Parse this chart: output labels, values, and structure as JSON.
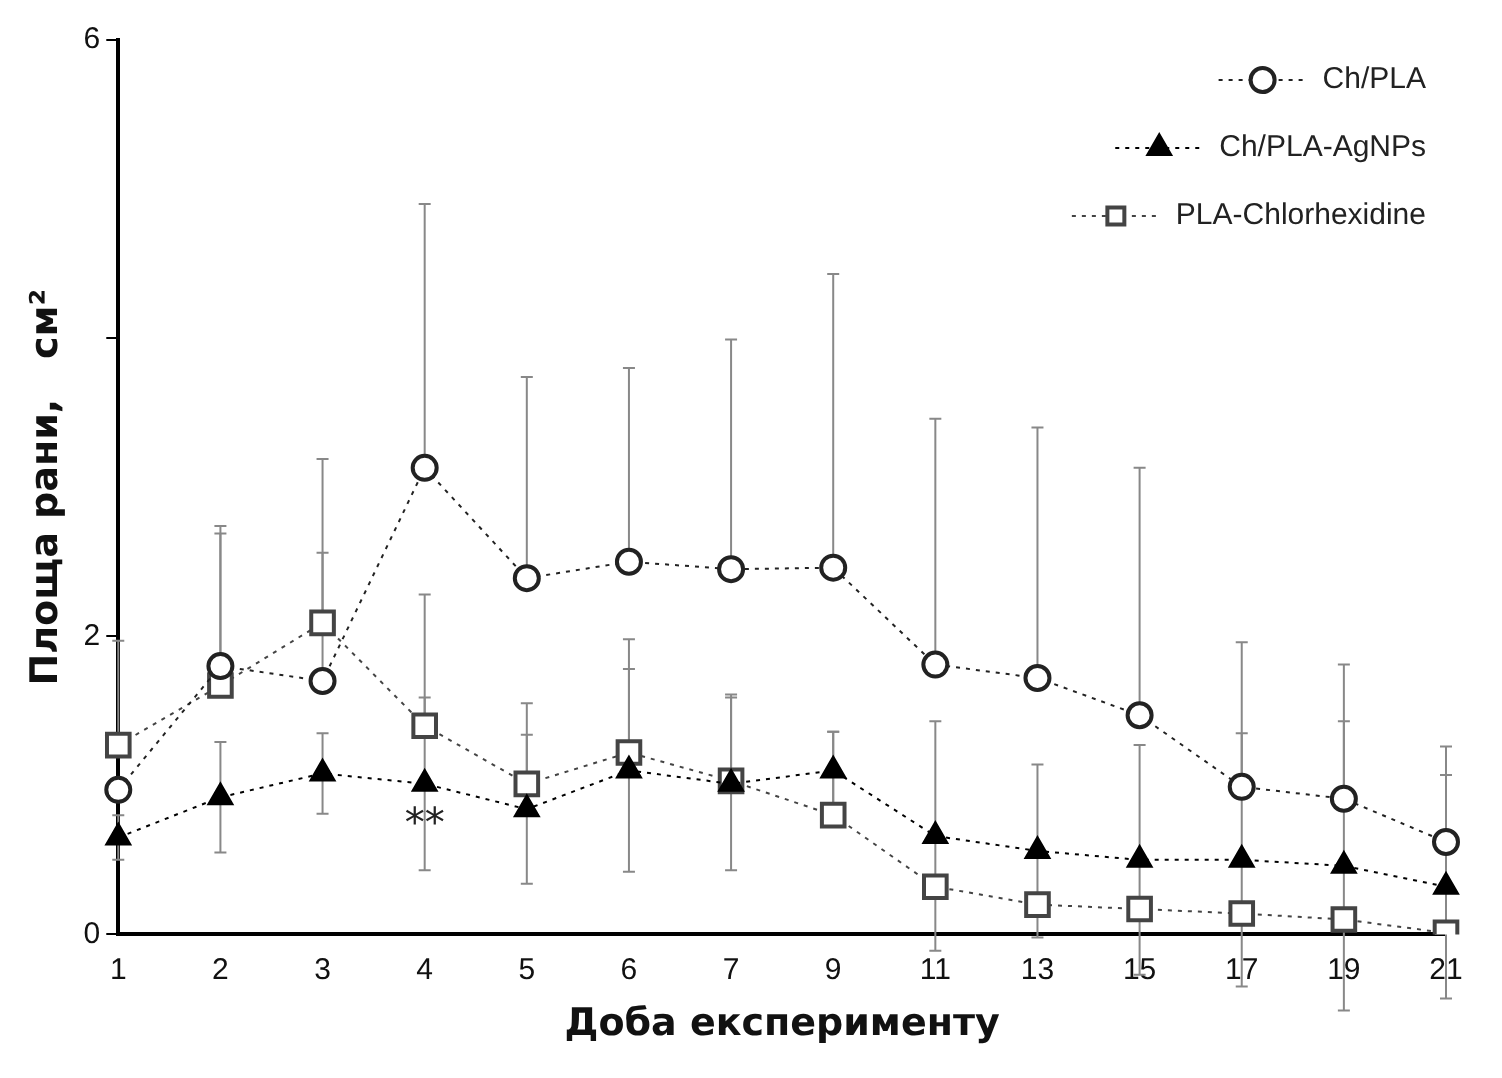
{
  "chart_data": {
    "type": "line",
    "xlabel": "Доба експерименту",
    "ylabel": "Площа рани,   см²",
    "categories": [
      "1",
      "2",
      "3",
      "4",
      "5",
      "6",
      "7",
      "9",
      "11",
      "13",
      "15",
      "17",
      "19",
      "21"
    ],
    "ylim": [
      0,
      6
    ],
    "yticks": [
      0,
      2,
      {
        "value": 4,
        "label": null
      },
      6
    ],
    "grid": false,
    "legend": "top right",
    "line_style": "dotted",
    "series": [
      {
        "name": "Ch/PLA",
        "color": "#222222",
        "marker": "circle",
        "values": [
          0.97,
          1.8,
          1.7,
          3.13,
          2.39,
          2.5,
          2.45,
          2.46,
          1.81,
          1.72,
          1.47,
          0.99,
          0.91,
          0.62
        ],
        "errors": [
          null,
          [
            1.8,
            2.74
          ],
          [
            1.7,
            3.19
          ],
          [
            3.13,
            4.9
          ],
          [
            2.39,
            3.74
          ],
          [
            2.5,
            3.8
          ],
          [
            2.45,
            3.99
          ],
          [
            2.46,
            4.43
          ],
          [
            1.81,
            3.46
          ],
          [
            1.72,
            3.4
          ],
          [
            1.47,
            3.13
          ],
          [
            0.99,
            1.96
          ],
          [
            0.91,
            1.81
          ],
          [
            0.62,
            1.26
          ]
        ]
      },
      {
        "name": "Ch/PLA-AgNPs",
        "color": "#000000",
        "marker": "triangle",
        "values": [
          0.65,
          0.92,
          1.08,
          1.01,
          0.84,
          1.1,
          1.01,
          1.1,
          0.66,
          0.56,
          0.5,
          0.5,
          0.46,
          0.32
        ],
        "errors": [
          0.15,
          0.37,
          0.27,
          0.58,
          0.5,
          0.68,
          0.58,
          0.26,
          0.77,
          0.58,
          0.77,
          0.85,
          0.97,
          0.75
        ]
      },
      {
        "name": "PLA-Chlorhexidine",
        "color": "#444444",
        "marker": "square",
        "values": [
          1.27,
          1.67,
          2.09,
          1.4,
          1.01,
          1.22,
          1.03,
          0.8,
          0.32,
          0.2,
          0.17,
          0.14,
          0.1,
          0.01
        ],
        "errors": [
          [
            1.27,
            1.97
          ],
          [
            1.67,
            2.69
          ],
          [
            2.09,
            2.56
          ],
          [
            1.4,
            2.28
          ],
          [
            1.01,
            1.55
          ],
          [
            1.22,
            1.98
          ],
          [
            1.03,
            1.61
          ],
          [
            0.8,
            1.36
          ],
          null,
          null,
          null,
          null,
          null,
          null
        ]
      }
    ],
    "annotations": [
      {
        "text": "**",
        "x": "4",
        "y": 0.73
      }
    ]
  }
}
